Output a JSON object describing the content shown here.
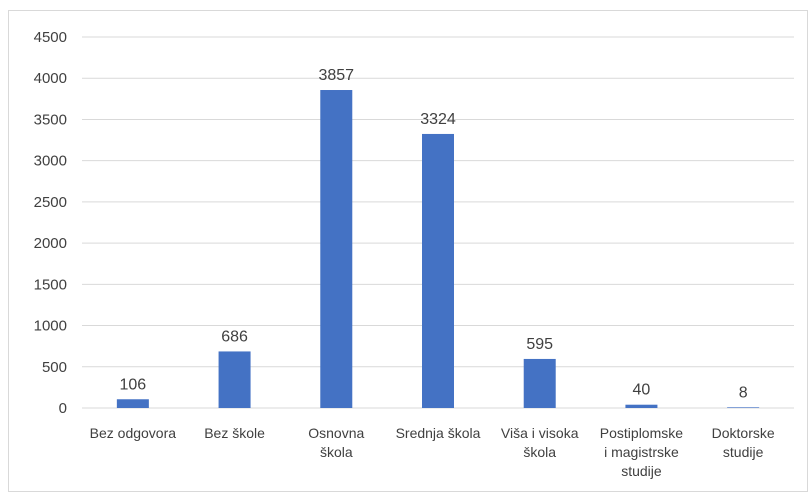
{
  "chart_data": {
    "type": "bar",
    "title": "",
    "xlabel": "",
    "ylabel": "",
    "categories": [
      [
        "Bez odgovora"
      ],
      [
        "Bez škole"
      ],
      [
        "Osnovna",
        "škola"
      ],
      [
        "Srednja škola"
      ],
      [
        "Viša i visoka",
        "škola"
      ],
      [
        "Postiplomske",
        "i magistrske",
        "studije"
      ],
      [
        "Doktorske",
        "studije"
      ]
    ],
    "values": [
      106,
      686,
      3857,
      3324,
      595,
      40,
      8
    ],
    "ylim": [
      0,
      4500
    ],
    "yticks": [
      0,
      500,
      1000,
      1500,
      2000,
      2500,
      3000,
      3500,
      4000,
      4500
    ],
    "grid": true,
    "bar_color": "#4472c4",
    "gridline_color": "#d9d9d9",
    "text_color": "#404040"
  }
}
